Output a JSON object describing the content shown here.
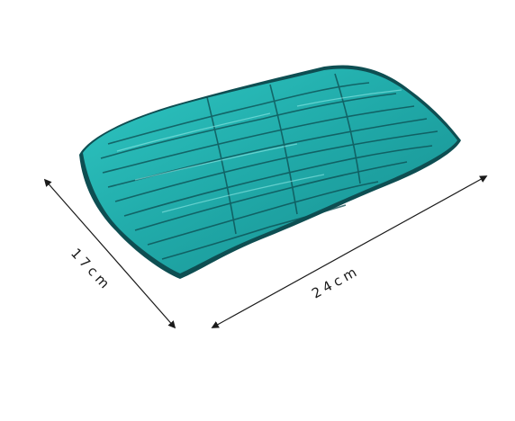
{
  "product": {
    "description_icon": "glass-tray-icon",
    "color": "#25b3b1",
    "edge_color": "#0d4f52",
    "width_label": "24cm",
    "depth_label": "17cm"
  }
}
